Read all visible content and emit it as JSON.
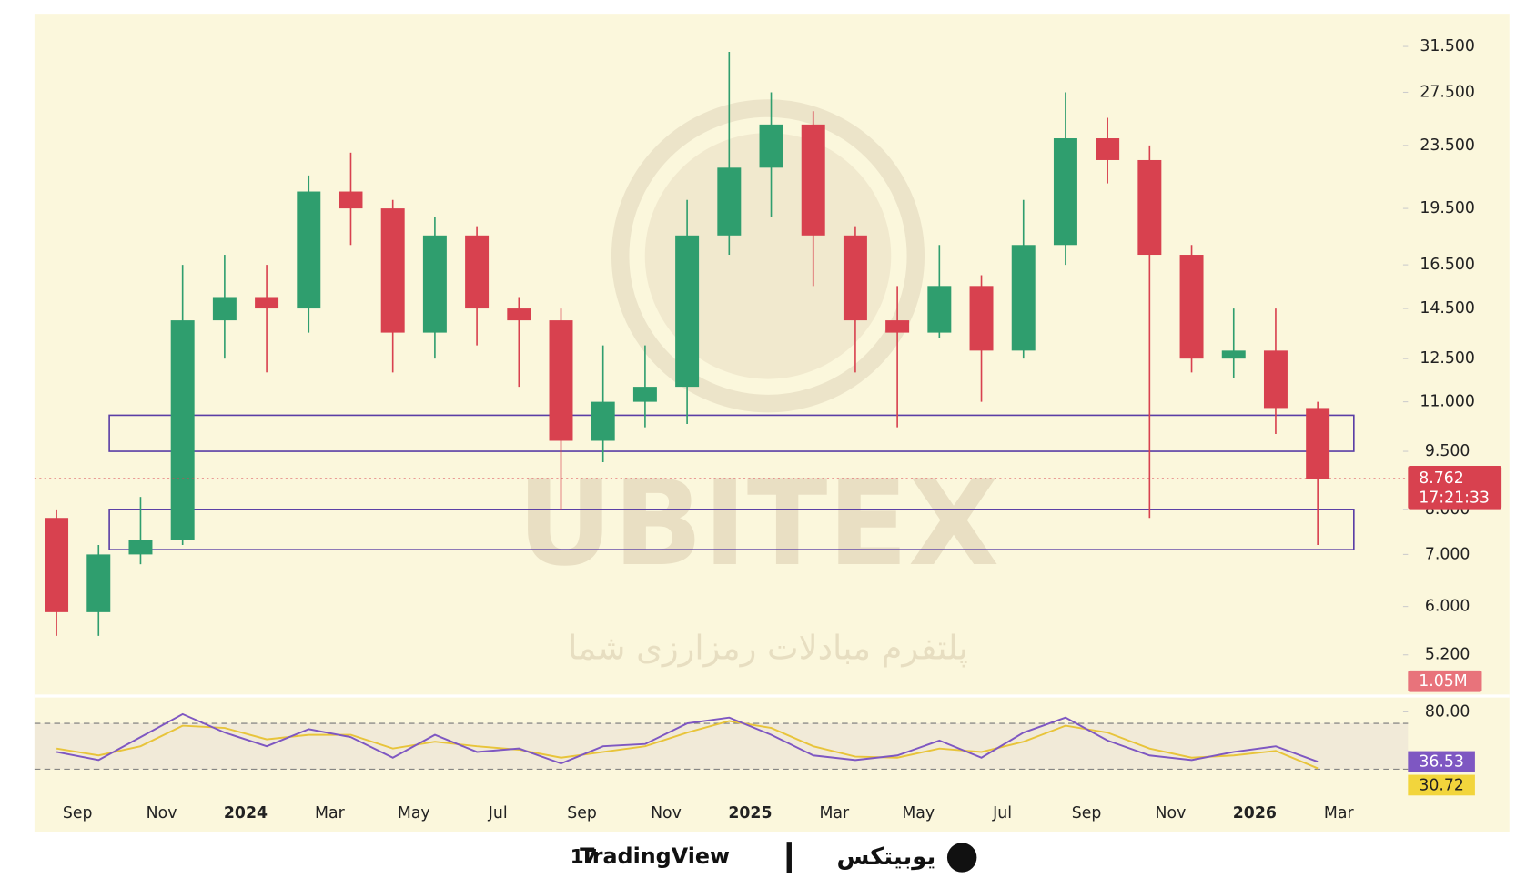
{
  "chart_data": [
    {
      "type": "candlestick",
      "categories": [
        null,
        "Sep",
        null,
        "Nov",
        null,
        "2024",
        null,
        "Mar",
        null,
        "May",
        null,
        "Jul",
        null,
        "Sep",
        null,
        "Nov",
        null,
        "2025",
        null,
        "Mar",
        null,
        "May",
        null,
        "Jul",
        null,
        "Sep",
        null,
        "Nov",
        null,
        "2026",
        null,
        "Mar"
      ],
      "open": [
        7.8,
        5.9,
        7.0,
        7.3,
        14.0,
        15.0,
        14.5,
        20.5,
        19.5,
        13.5,
        18.0,
        14.5,
        14.0,
        9.8,
        11.0,
        11.5,
        18.0,
        22.0,
        25.0,
        18.0,
        14.0,
        13.5,
        15.5,
        12.8,
        17.5,
        24.0,
        22.5,
        17.0,
        12.5,
        12.8,
        10.8,
        null
      ],
      "high": [
        8.0,
        7.2,
        8.3,
        16.5,
        17.0,
        16.5,
        21.5,
        23.0,
        20.0,
        19.0,
        18.5,
        15.0,
        14.5,
        13.0,
        13.0,
        20.0,
        31.0,
        27.5,
        26.0,
        18.5,
        15.5,
        17.5,
        16.0,
        20.0,
        27.5,
        25.5,
        23.5,
        17.5,
        14.5,
        14.5,
        11.0,
        null
      ],
      "low": [
        5.5,
        5.5,
        6.8,
        7.2,
        12.5,
        12.0,
        13.5,
        17.5,
        12.0,
        12.5,
        13.0,
        11.5,
        8.0,
        9.2,
        10.2,
        10.3,
        17.0,
        19.0,
        15.5,
        12.0,
        10.2,
        13.3,
        11.0,
        12.5,
        16.5,
        21.0,
        7.8,
        12.0,
        11.8,
        10.0,
        7.2,
        null
      ],
      "close": [
        5.9,
        7.0,
        7.3,
        14.0,
        15.0,
        14.5,
        20.5,
        19.5,
        13.5,
        18.0,
        14.5,
        14.0,
        9.8,
        11.0,
        11.5,
        18.0,
        22.0,
        25.0,
        18.0,
        14.0,
        13.5,
        15.5,
        12.8,
        17.5,
        24.0,
        22.5,
        17.0,
        12.5,
        12.8,
        10.8,
        8.762,
        null
      ],
      "up_color": "#2f9e6e",
      "down_color": "#d8414f",
      "log_scale": true,
      "ylim": [
        4.63,
        34.6
      ],
      "yticks": [
        {
          "value": 31.5,
          "label": "31.500"
        },
        {
          "value": 27.5,
          "label": "27.500"
        },
        {
          "value": 23.5,
          "label": "23.500"
        },
        {
          "value": 19.5,
          "label": "19.500"
        },
        {
          "value": 16.5,
          "label": "16.500"
        },
        {
          "value": 14.5,
          "label": "14.500"
        },
        {
          "value": 12.5,
          "label": "12.500"
        },
        {
          "value": 11,
          "label": "11.000"
        },
        {
          "value": 9.5,
          "label": "9.500"
        },
        {
          "value": 8,
          "label": "8.000"
        },
        {
          "value": 7,
          "label": "7.000"
        },
        {
          "value": 6,
          "label": "6.000"
        },
        {
          "value": 5.2,
          "label": "5.200"
        }
      ],
      "zones": [
        {
          "low": 9.5,
          "high": 10.57
        },
        {
          "low": 7.1,
          "high": 8.0
        }
      ],
      "zone_color": "#5a3ea6",
      "last_price": 8.762,
      "countdown": "17:21:33",
      "volume_label": "1.05M"
    },
    {
      "type": "line",
      "ylim": [
        1,
        93
      ],
      "yticks": [
        {
          "value": 80,
          "label": "80.00"
        }
      ],
      "band": [
        30,
        70
      ],
      "series": [
        {
          "color": "#7e57c2",
          "values": [
            45,
            38,
            58,
            78,
            62,
            50,
            65,
            58,
            40,
            60,
            45,
            48,
            35,
            50,
            52,
            70,
            75,
            60,
            42,
            38,
            42,
            55,
            40,
            62,
            75,
            55,
            42,
            38,
            45,
            50,
            36.53,
            null
          ],
          "value_labels": [
            null,
            null,
            null,
            null,
            null,
            null,
            null,
            null,
            null,
            null,
            null,
            null,
            null,
            null,
            null,
            null,
            null,
            null,
            null,
            null,
            null,
            null,
            null,
            null,
            null,
            null,
            null,
            null,
            null,
            null,
            "36.53",
            null
          ]
        },
        {
          "color": "#e8c43a",
          "values": [
            48,
            42,
            50,
            68,
            66,
            56,
            60,
            60,
            48,
            54,
            50,
            47,
            40,
            45,
            50,
            62,
            72,
            66,
            50,
            41,
            40,
            48,
            45,
            54,
            68,
            62,
            48,
            40,
            42,
            46,
            30.72,
            null
          ],
          "value_labels": [
            null,
            null,
            null,
            null,
            null,
            null,
            null,
            null,
            null,
            null,
            null,
            null,
            null,
            null,
            null,
            null,
            null,
            null,
            null,
            null,
            null,
            null,
            null,
            null,
            null,
            null,
            null,
            null,
            null,
            null,
            "30.72",
            null
          ]
        }
      ]
    }
  ],
  "watermark": {
    "brand": "UBITEX",
    "tagline": "پلتفرم مبادلات رمزارزی شما"
  },
  "footer": {
    "left": "TradingView",
    "right": "یوبیتکس"
  }
}
